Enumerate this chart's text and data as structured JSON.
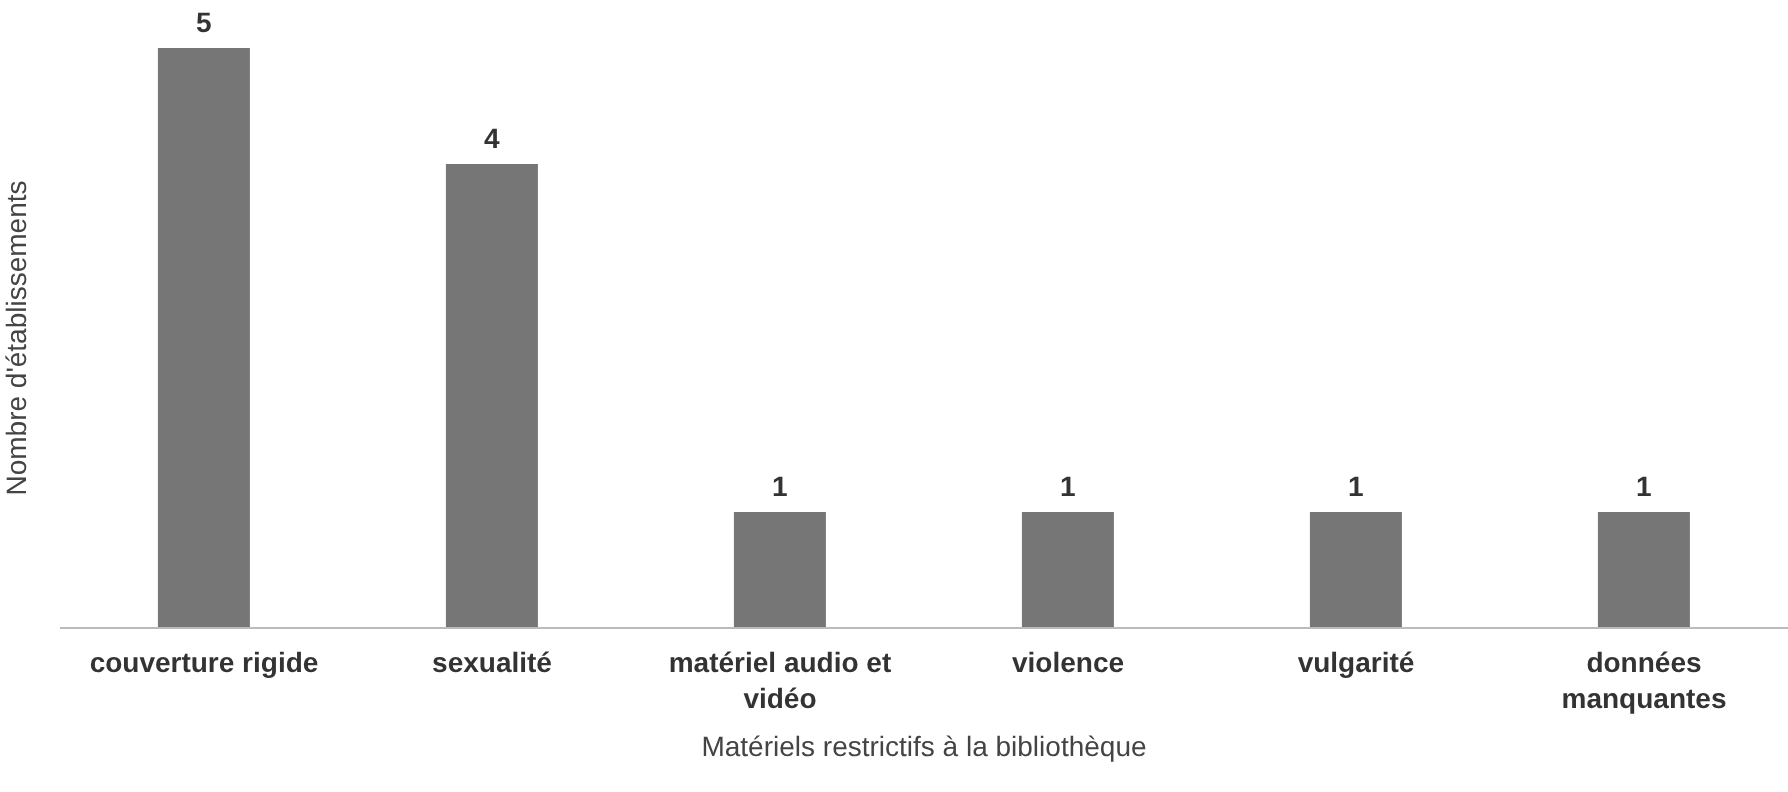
{
  "chart_data": {
    "type": "bar",
    "xlabel": "Matériels restrictifs à la bibliothèque",
    "ylabel": "Nombre d'établissements",
    "categories": [
      "couverture rigide",
      "sexualité",
      "matériel audio et vidéo",
      "violence",
      "vulgarité",
      "données manquantes"
    ],
    "values": [
      5,
      4,
      1,
      1,
      1,
      1
    ],
    "color": "#767676",
    "data_labels": true,
    "tick_labels": "x",
    "grid": false,
    "legend": false
  }
}
